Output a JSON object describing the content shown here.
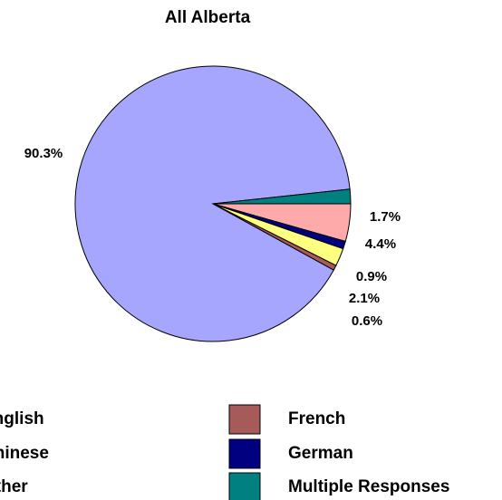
{
  "chart_data": {
    "type": "pie",
    "title": "All Alberta",
    "categories": [
      "English",
      "Chinese",
      "Other",
      "French",
      "German",
      "Multiple Responses"
    ],
    "values": [
      90.3,
      2.1,
      4.4,
      0.6,
      0.9,
      1.7
    ],
    "value_labels": [
      "90.3%",
      "2.1%",
      "4.4%",
      "0.6%",
      "0.9%",
      "1.7%"
    ],
    "colors": [
      "#a6a6ff",
      "#ffff80",
      "#ffaaaa",
      "#a65a5a",
      "#000080",
      "#008080"
    ]
  }
}
